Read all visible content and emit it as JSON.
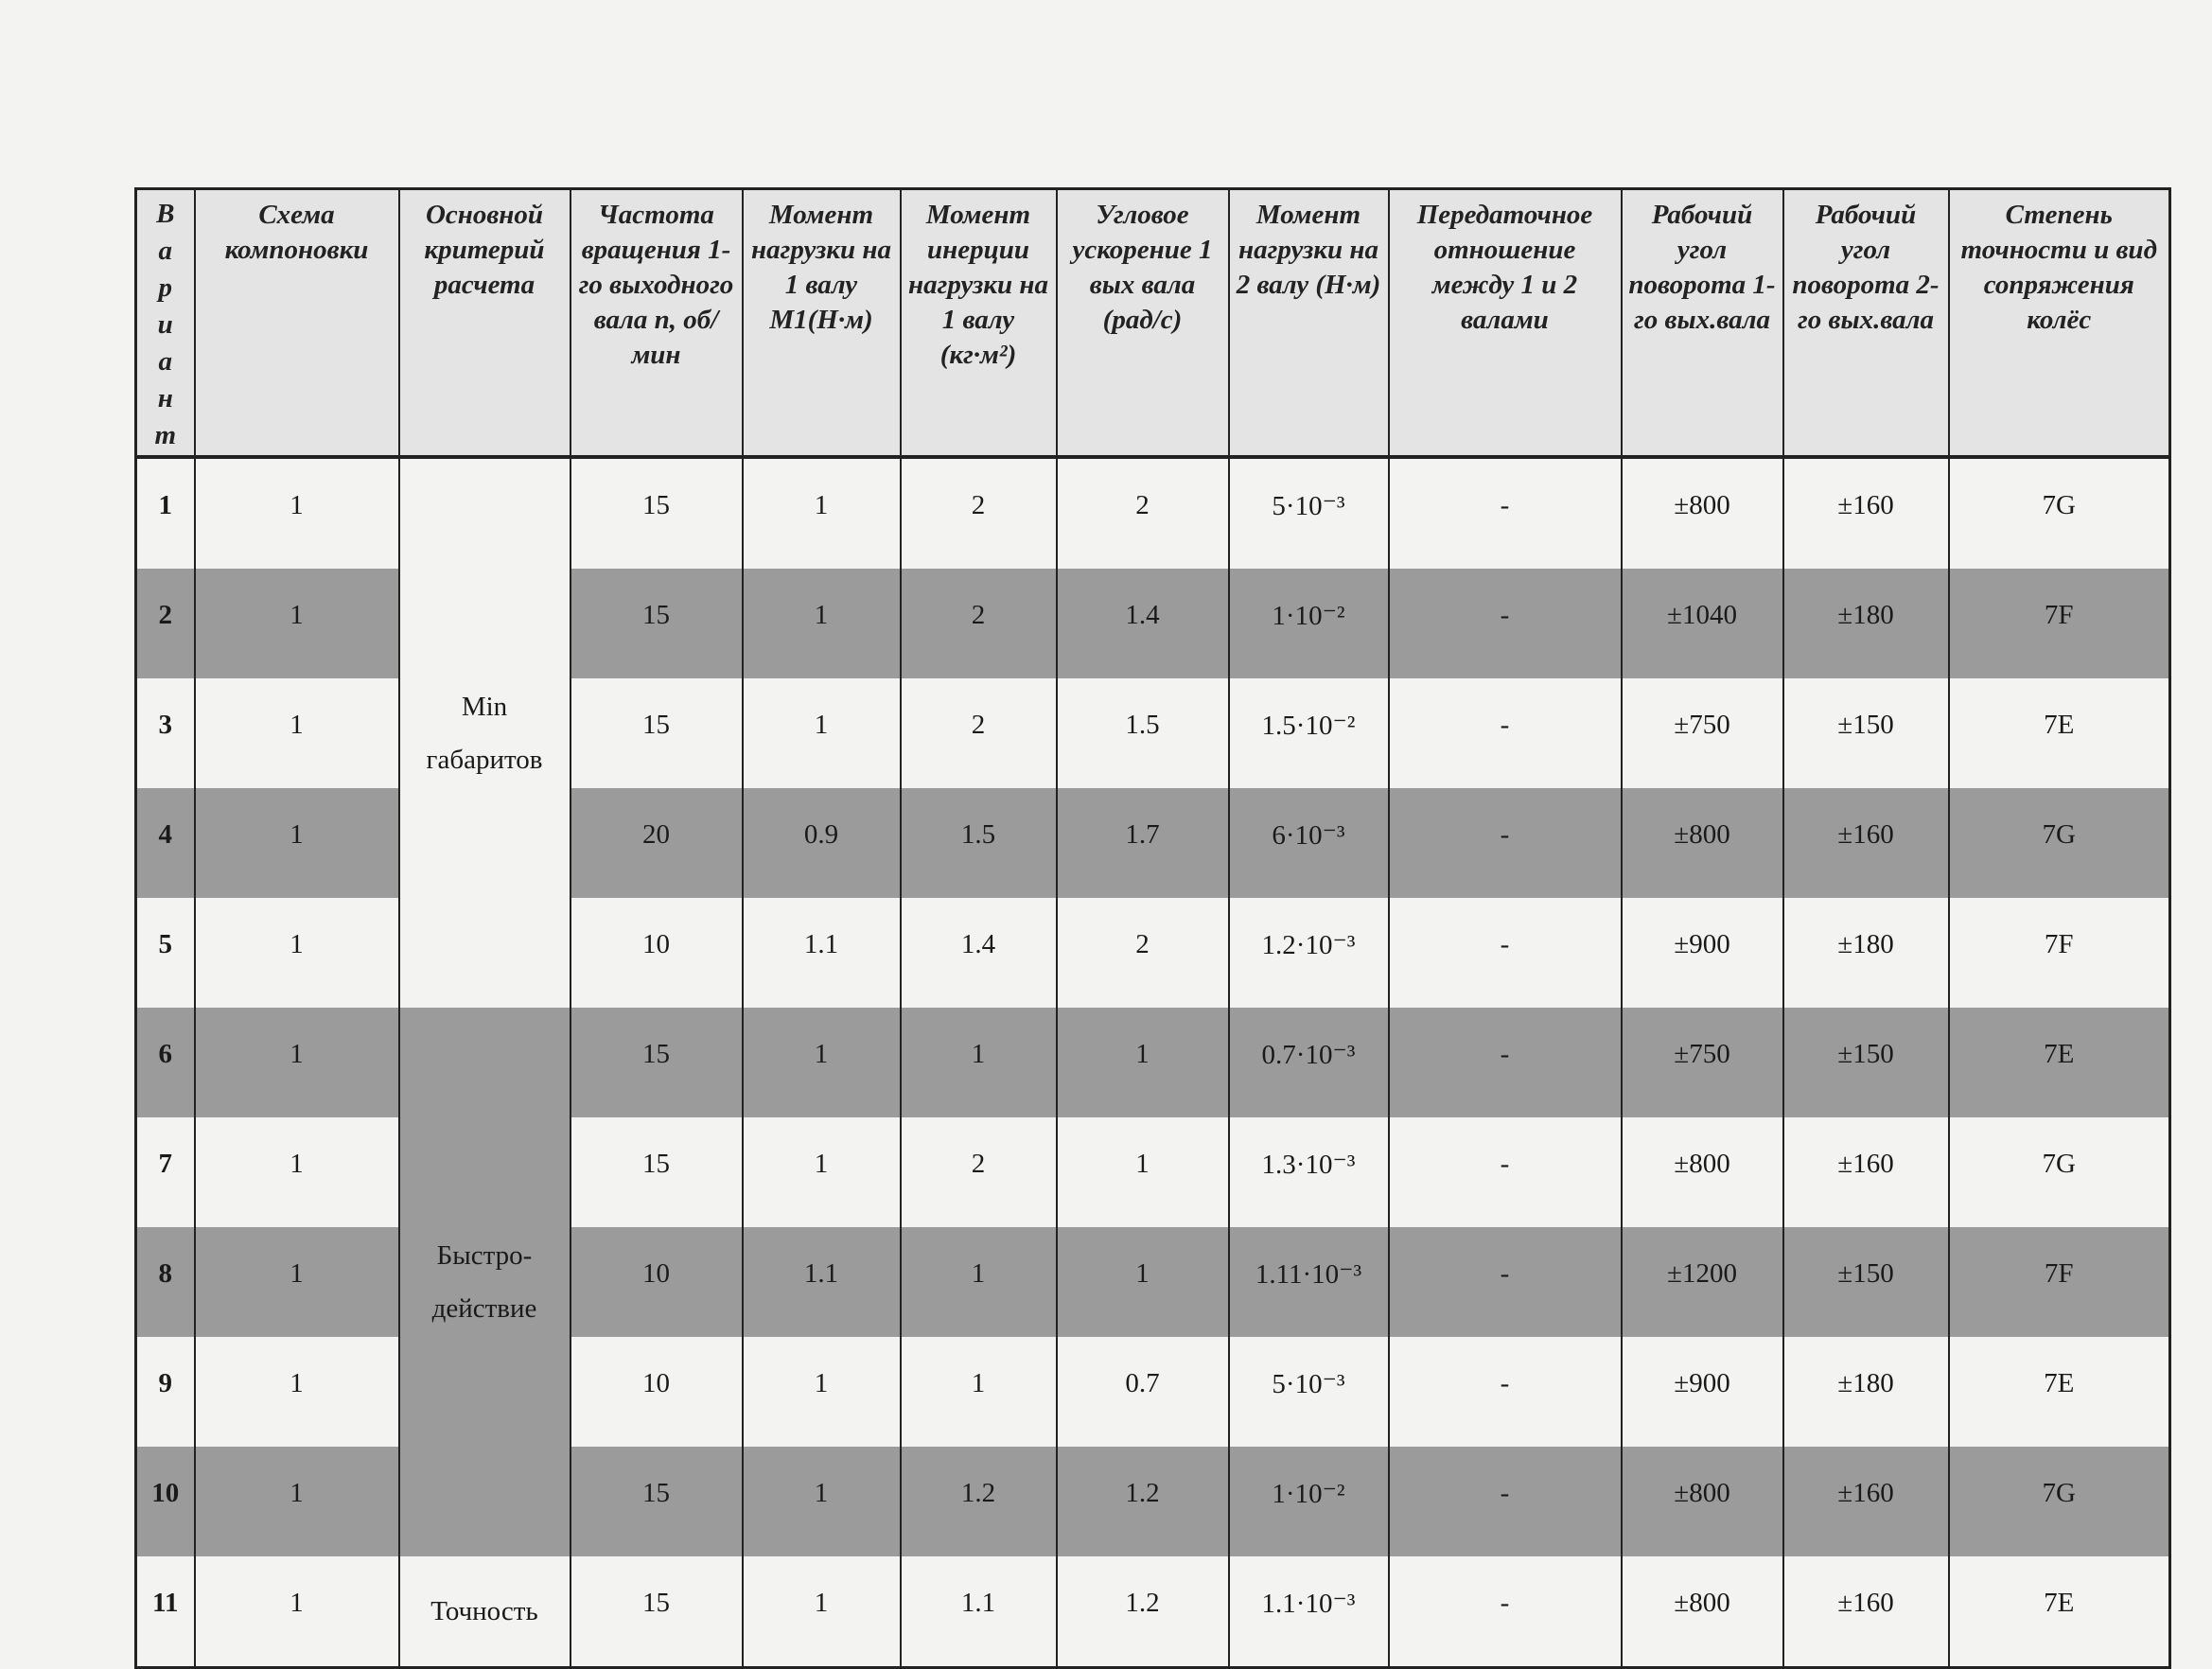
{
  "table": {
    "headers": [
      "Вариант",
      "Схема компоновки",
      "Основной критерий расчета",
      "Частота вращения 1-го выходного вала n, об/мин",
      "Момент нагрузки на 1 валу M1(Н·м)",
      "Момент инерции нагрузки на 1 валу (кг·м²)",
      "Угловое ускорение 1 вых вала (рад/с)",
      "Момент нагрузки на 2 валу (Н·м)",
      "Передаточное отношение между 1 и 2 валами",
      "Рабочий угол поворота 1-го вых.вала",
      "Рабочий угол поворота 2-го вых.вала",
      "Степень точности и вид сопряжения колёс"
    ],
    "criteria": [
      {
        "line1": "Min",
        "line2": "габаритов",
        "rows": 5,
        "shaded": false
      },
      {
        "line1": "Быстро-",
        "line2": "действие",
        "rows": 5,
        "shaded": true
      },
      {
        "line1": "Точность",
        "line2": "",
        "rows": 1,
        "shaded": false
      }
    ],
    "rows": [
      [
        "1",
        "1",
        "15",
        "1",
        "2",
        "2",
        "5·10⁻³",
        "-",
        "±800",
        "±160",
        "7G"
      ],
      [
        "2",
        "1",
        "15",
        "1",
        "2",
        "1.4",
        "1·10⁻²",
        "-",
        "±1040",
        "±180",
        "7F"
      ],
      [
        "3",
        "1",
        "15",
        "1",
        "2",
        "1.5",
        "1.5·10⁻²",
        "-",
        "±750",
        "±150",
        "7E"
      ],
      [
        "4",
        "1",
        "20",
        "0.9",
        "1.5",
        "1.7",
        "6·10⁻³",
        "-",
        "±800",
        "±160",
        "7G"
      ],
      [
        "5",
        "1",
        "10",
        "1.1",
        "1.4",
        "2",
        "1.2·10⁻³",
        "-",
        "±900",
        "±180",
        "7F"
      ],
      [
        "6",
        "1",
        "15",
        "1",
        "1",
        "1",
        "0.7·10⁻³",
        "-",
        "±750",
        "±150",
        "7E"
      ],
      [
        "7",
        "1",
        "15",
        "1",
        "2",
        "1",
        "1.3·10⁻³",
        "-",
        "±800",
        "±160",
        "7G"
      ],
      [
        "8",
        "1",
        "10",
        "1.1",
        "1",
        "1",
        "1.11·10⁻³",
        "-",
        "±1200",
        "±150",
        "7F"
      ],
      [
        "9",
        "1",
        "10",
        "1",
        "1",
        "0.7",
        "5·10⁻³",
        "-",
        "±900",
        "±180",
        "7E"
      ],
      [
        "10",
        "1",
        "15",
        "1",
        "1.2",
        "1.2",
        "1·10⁻²",
        "-",
        "±800",
        "±160",
        "7G"
      ],
      [
        "11",
        "1",
        "15",
        "1",
        "1.1",
        "1.2",
        "1.1·10⁻³",
        "-",
        "±800",
        "±160",
        "7E"
      ]
    ],
    "shade_color": "#9b9b9b",
    "header_color": "#e4e4e4"
  }
}
